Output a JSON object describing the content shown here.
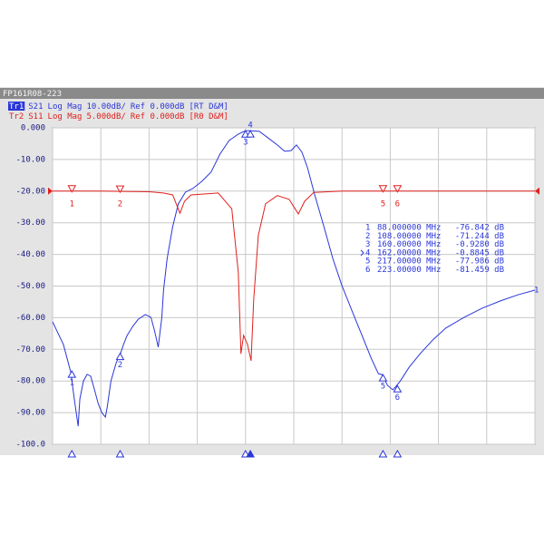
{
  "window_title": "FP161R08-223",
  "chart_data": {
    "type": "line",
    "xlim": [
      80,
      280
    ],
    "xticks": [
      80,
      100,
      120,
      140,
      160,
      180,
      200,
      220,
      240,
      260,
      280
    ],
    "ylim": [
      -100,
      0
    ],
    "yticks": [
      {
        "value": 0,
        "label": "0.000"
      },
      {
        "value": -10,
        "label": "-10.00"
      },
      {
        "value": -20,
        "label": "-20.00"
      },
      {
        "value": -30,
        "label": "-30.00"
      },
      {
        "value": -40,
        "label": "-40.00"
      },
      {
        "value": -50,
        "label": "-50.00"
      },
      {
        "value": -60,
        "label": "-60.00"
      },
      {
        "value": -70,
        "label": "-70.00"
      },
      {
        "value": -80,
        "label": "-80.00"
      },
      {
        "value": -90,
        "label": "-90.00"
      },
      {
        "value": -100,
        "label": "-100.0"
      }
    ],
    "y2lim": [
      -40,
      10
    ],
    "grid": true,
    "series": [
      {
        "name": "Tr1",
        "param": "S21",
        "format": "Log Mag",
        "scale": "10.00dB/",
        "ref": "Ref 0.000dB",
        "tag": "[RT D&M]",
        "color": "#2a36d8",
        "trace_label": "1",
        "x": [
          80,
          84.5,
          87.5,
          89,
          90.6,
          91.3,
          92.8,
          94.3,
          95.8,
          97.4,
          98.9,
          100.4,
          101.9,
          102.6,
          104.2,
          106.4,
          107.9,
          109.4,
          110.9,
          113.2,
          115.5,
          118.5,
          120.8,
          122.3,
          123.8,
          125.3,
          126,
          127.5,
          129.8,
          132.1,
          135.1,
          138.1,
          141.9,
          145.7,
          149.4,
          153.2,
          157,
          160,
          161.9,
          165.7,
          169.4,
          173.2,
          176.2,
          178.9,
          181.1,
          183.4,
          185.7,
          188.7,
          192.5,
          196.2,
          200,
          204.5,
          208.3,
          212.1,
          215.1,
          216.6,
          218.9,
          221.1,
          222.6,
          224.2,
          227.9,
          232.5,
          237.7,
          243,
          250.6,
          258.1,
          265.7,
          273.2,
          280
        ],
        "values": [
          -61.3,
          -68.5,
          -77.1,
          -85.7,
          -94.3,
          -85.7,
          -80,
          -77.9,
          -78.5,
          -82.8,
          -87.1,
          -90,
          -91.4,
          -88.5,
          -80,
          -74.2,
          -71.9,
          -68.5,
          -65.6,
          -62.8,
          -60.5,
          -59,
          -59.9,
          -64.2,
          -69.3,
          -59.9,
          -51.3,
          -41.3,
          -31.2,
          -24.1,
          -20.3,
          -19.2,
          -16.9,
          -14,
          -8.3,
          -4,
          -2,
          -0.9,
          -0.9,
          -1.1,
          -3.2,
          -5.4,
          -7.4,
          -7.2,
          -5.4,
          -7.7,
          -12.6,
          -21.2,
          -31.2,
          -41.3,
          -49.9,
          -58.5,
          -65.6,
          -72.8,
          -77.7,
          -78,
          -81.4,
          -82.8,
          -81.5,
          -80,
          -75.6,
          -71.3,
          -67,
          -63.3,
          -59.9,
          -57,
          -54.7,
          -52.7,
          -51.3
        ]
      },
      {
        "name": "Tr2",
        "param": "S11",
        "format": "Log Mag",
        "scale": "5.000dB/",
        "ref": "Ref 0.000dB",
        "tag": "[R0 D&M]",
        "color": "#e0201c",
        "axis": "y2",
        "markers": [
          "1",
          "2",
          "5",
          "6"
        ],
        "x": [
          80,
          100,
          120,
          126,
          129.8,
          132.8,
          134.7,
          137.4,
          148.7,
          154.3,
          157,
          158.1,
          159.2,
          160.8,
          162.3,
          163.4,
          165.3,
          168.3,
          173.2,
          178.1,
          181.9,
          184.5,
          188.3,
          200,
          240,
          280
        ],
        "values": [
          0,
          0,
          -0.1,
          -0.3,
          -0.6,
          -3.5,
          -1.6,
          -0.6,
          -0.3,
          -2.8,
          -12.8,
          -25.7,
          -22.8,
          -24.2,
          -26.8,
          -17.1,
          -7,
          -2,
          -0.7,
          -1.3,
          -3.6,
          -1.6,
          -0.2,
          0,
          0,
          0
        ]
      }
    ],
    "markers": [
      {
        "id": "1",
        "x": 88,
        "x_label": "88.000000 MHz",
        "y": -76.842,
        "y_label": "-76.842 dB"
      },
      {
        "id": "2",
        "x": 108,
        "x_label": "108.00000 MHz",
        "y": -71.244,
        "y_label": "-71.244 dB"
      },
      {
        "id": "3",
        "x": 160,
        "x_label": "160.00000 MHz",
        "y": -0.928,
        "y_label": "-0.9280 dB"
      },
      {
        "id": "4",
        "x": 162,
        "x_label": "162.00000 MHz",
        "y": -0.8845,
        "y_label": "-0.8845 dB"
      },
      {
        "id": "5",
        "x": 217,
        "x_label": "217.00000 MHz",
        "y": -77.986,
        "y_label": "-77.986 dB"
      },
      {
        "id": "6",
        "x": 223,
        "x_label": "223.00000 MHz",
        "y": -81.459,
        "y_label": "-81.459 dB"
      }
    ],
    "active": 3
  }
}
